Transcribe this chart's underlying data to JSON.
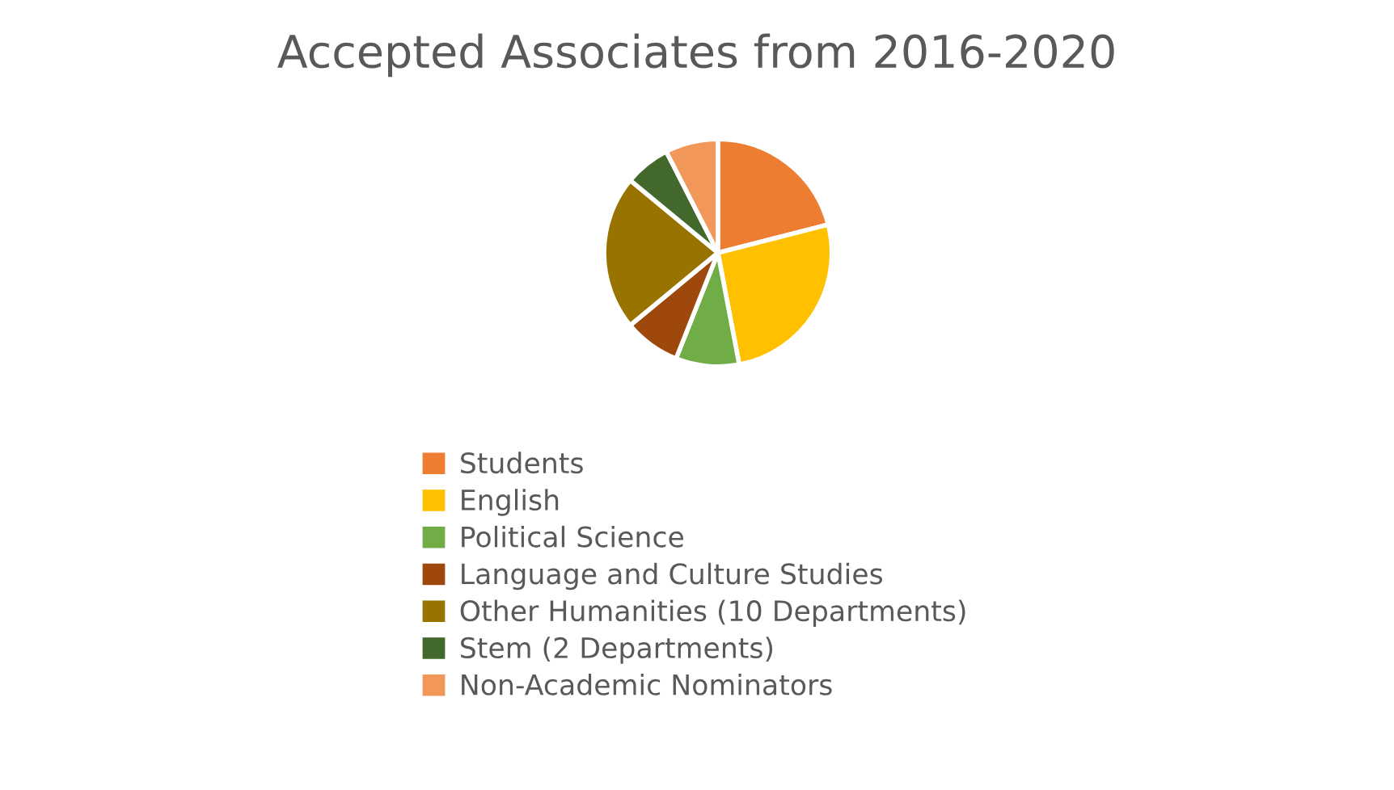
{
  "chart_data": {
    "type": "pie",
    "title": "Accepted Associates from 2016-2020",
    "categories": [
      "Students",
      "English",
      "Political Science",
      "Language and Culture Studies",
      "Other Humanities (10 Departments)",
      "Stem (2 Departments)",
      "Non-Academic Nominators"
    ],
    "values": [
      21,
      26,
      9,
      8,
      22,
      6.5,
      7.5
    ],
    "colors": [
      "#ed7d31",
      "#ffc000",
      "#70ad47",
      "#9e480e",
      "#997300",
      "#43682b",
      "#f1975a"
    ],
    "legend": "bottom"
  }
}
